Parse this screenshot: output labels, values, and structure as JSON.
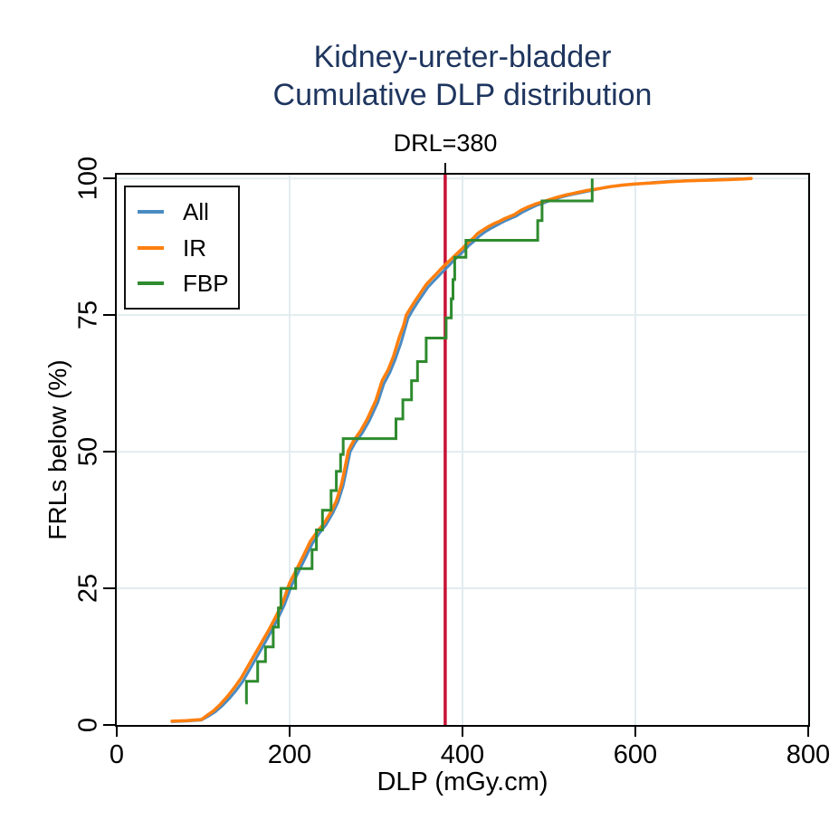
{
  "title": {
    "line1": "Kidney-ureter-bladder",
    "line2": "Cumulative DLP distribution",
    "color": "#1e355e"
  },
  "annotation": {
    "label": "DRL=380",
    "x": 380,
    "line_color": "#c81236",
    "tick_color": "#000000"
  },
  "axes": {
    "xlabel": "DLP (mGy.cm)",
    "ylabel": "FRLs below (%)",
    "grid_color": "#e2ecef",
    "border_color": "#000000"
  },
  "chart_data": {
    "type": "line",
    "title": "Kidney-ureter-bladder Cumulative DLP distribution",
    "xlabel": "DLP (mGy.cm)",
    "ylabel": "FRLs below (%)",
    "xlim": [
      0,
      800
    ],
    "ylim": [
      0,
      100.7
    ],
    "x_ticks": [
      0,
      200,
      400,
      600,
      800
    ],
    "y_ticks": [
      0,
      25,
      50,
      75,
      100
    ],
    "grid": true,
    "legend_position": "top-left",
    "reference_line": {
      "label": "DRL=380",
      "x": 380
    },
    "series": [
      {
        "name": "All",
        "color": "#4a8bc2",
        "style": "line",
        "points": [
          [
            64,
            0.6
          ],
          [
            80,
            0.7
          ],
          [
            98,
            0.9
          ],
          [
            106,
            1.6
          ],
          [
            114,
            2.4
          ],
          [
            122,
            3.5
          ],
          [
            130,
            4.8
          ],
          [
            138,
            6.3
          ],
          [
            146,
            8.0
          ],
          [
            154,
            10.2
          ],
          [
            162,
            12.4
          ],
          [
            170,
            14.6
          ],
          [
            178,
            16.9
          ],
          [
            186,
            19.3
          ],
          [
            194,
            22.0
          ],
          [
            202,
            25.4
          ],
          [
            210,
            27.9
          ],
          [
            218,
            30.5
          ],
          [
            226,
            33.1
          ],
          [
            234,
            35.0
          ],
          [
            242,
            36.6
          ],
          [
            250,
            38.8
          ],
          [
            256,
            40.8
          ],
          [
            262,
            43.8
          ],
          [
            266,
            46.8
          ],
          [
            270,
            50.0
          ],
          [
            276,
            51.7
          ],
          [
            284,
            53.4
          ],
          [
            292,
            55.6
          ],
          [
            302,
            59.0
          ],
          [
            309,
            62.4
          ],
          [
            316,
            64.5
          ],
          [
            322,
            66.8
          ],
          [
            329,
            70.0
          ],
          [
            337,
            74.4
          ],
          [
            342,
            75.8
          ],
          [
            348,
            77.3
          ],
          [
            354,
            78.7
          ],
          [
            360,
            80.1
          ],
          [
            366,
            81.1
          ],
          [
            372,
            82.1
          ],
          [
            378,
            83.1
          ],
          [
            384,
            84.0
          ],
          [
            390,
            85.0
          ],
          [
            396,
            85.9
          ],
          [
            402,
            86.8
          ],
          [
            408,
            87.8
          ],
          [
            414,
            88.6
          ],
          [
            420,
            89.5
          ],
          [
            426,
            90.2
          ],
          [
            432,
            90.8
          ],
          [
            438,
            91.3
          ],
          [
            444,
            91.8
          ],
          [
            450,
            92.3
          ],
          [
            456,
            92.7
          ],
          [
            462,
            93.1
          ],
          [
            470,
            93.9
          ],
          [
            478,
            94.5
          ],
          [
            486,
            95.1
          ],
          [
            494,
            95.5
          ],
          [
            502,
            96.0
          ],
          [
            512,
            96.5
          ],
          [
            522,
            96.9
          ],
          [
            534,
            97.3
          ],
          [
            546,
            97.7
          ],
          [
            558,
            98.1
          ],
          [
            572,
            98.5
          ],
          [
            587,
            98.8
          ],
          [
            602,
            99.0
          ],
          [
            622,
            99.3
          ],
          [
            642,
            99.5
          ],
          [
            667,
            99.6
          ],
          [
            692,
            99.8
          ],
          [
            712,
            99.9
          ],
          [
            734,
            100
          ]
        ]
      },
      {
        "name": "IR",
        "color": "#ff7f0e",
        "style": "line",
        "points": [
          [
            64,
            0.7
          ],
          [
            80,
            0.8
          ],
          [
            98,
            1.0
          ],
          [
            105,
            1.8
          ],
          [
            112,
            2.6
          ],
          [
            120,
            3.8
          ],
          [
            128,
            5.2
          ],
          [
            136,
            6.8
          ],
          [
            144,
            8.6
          ],
          [
            152,
            10.8
          ],
          [
            160,
            13.0
          ],
          [
            168,
            15.2
          ],
          [
            176,
            17.4
          ],
          [
            184,
            19.8
          ],
          [
            192,
            22.4
          ],
          [
            200,
            26.0
          ],
          [
            208,
            28.4
          ],
          [
            216,
            31.0
          ],
          [
            224,
            33.6
          ],
          [
            232,
            35.4
          ],
          [
            240,
            36.9
          ],
          [
            248,
            39.0
          ],
          [
            254,
            41.0
          ],
          [
            260,
            44.0
          ],
          [
            264,
            47.0
          ],
          [
            268,
            50.2
          ],
          [
            274,
            52.0
          ],
          [
            282,
            53.8
          ],
          [
            290,
            56.0
          ],
          [
            300,
            59.5
          ],
          [
            307,
            63.0
          ],
          [
            314,
            65.0
          ],
          [
            320,
            67.4
          ],
          [
            327,
            71.0
          ],
          [
            332,
            73.2
          ],
          [
            335,
            75.0
          ],
          [
            340,
            76.3
          ],
          [
            346,
            77.8
          ],
          [
            352,
            79.2
          ],
          [
            358,
            80.6
          ],
          [
            364,
            81.6
          ],
          [
            370,
            82.6
          ],
          [
            376,
            83.6
          ],
          [
            382,
            84.5
          ],
          [
            388,
            85.4
          ],
          [
            394,
            86.3
          ],
          [
            400,
            87.2
          ],
          [
            406,
            88.2
          ],
          [
            412,
            89.0
          ],
          [
            418,
            90.0
          ],
          [
            424,
            90.6
          ],
          [
            430,
            91.2
          ],
          [
            436,
            91.7
          ],
          [
            442,
            92.1
          ],
          [
            448,
            92.6
          ],
          [
            454,
            93.0
          ],
          [
            460,
            93.4
          ],
          [
            468,
            94.2
          ],
          [
            476,
            94.8
          ],
          [
            484,
            95.3
          ],
          [
            492,
            95.7
          ],
          [
            500,
            96.1
          ],
          [
            510,
            96.6
          ],
          [
            520,
            97.0
          ],
          [
            532,
            97.4
          ],
          [
            544,
            97.8
          ],
          [
            556,
            98.1
          ],
          [
            570,
            98.5
          ],
          [
            585,
            98.8
          ],
          [
            600,
            99.0
          ],
          [
            620,
            99.2
          ],
          [
            640,
            99.4
          ],
          [
            665,
            99.6
          ],
          [
            690,
            99.7
          ],
          [
            710,
            99.8
          ],
          [
            725,
            99.9
          ],
          [
            734,
            100
          ]
        ]
      },
      {
        "name": "FBP",
        "color": "#2e8b2e",
        "style": "step",
        "points": [
          [
            149,
            4.0
          ],
          [
            150,
            8.0
          ],
          [
            163,
            11.6
          ],
          [
            172,
            14.3
          ],
          [
            181,
            17.9
          ],
          [
            187,
            21.4
          ],
          [
            190,
            25.0
          ],
          [
            207,
            28.6
          ],
          [
            226,
            32.1
          ],
          [
            231,
            35.7
          ],
          [
            238,
            39.3
          ],
          [
            248,
            42.9
          ],
          [
            254,
            46.4
          ],
          [
            259,
            49.5
          ],
          [
            262,
            52.4
          ],
          [
            323,
            56.0
          ],
          [
            331,
            59.5
          ],
          [
            341,
            63.0
          ],
          [
            348,
            66.5
          ],
          [
            358,
            70.8
          ],
          [
            381,
            74.5
          ],
          [
            387,
            78.0
          ],
          [
            389,
            81.5
          ],
          [
            391,
            85.6
          ],
          [
            404,
            88.7
          ],
          [
            487,
            92.3
          ],
          [
            492,
            95.9
          ],
          [
            550,
            100
          ]
        ]
      }
    ]
  }
}
